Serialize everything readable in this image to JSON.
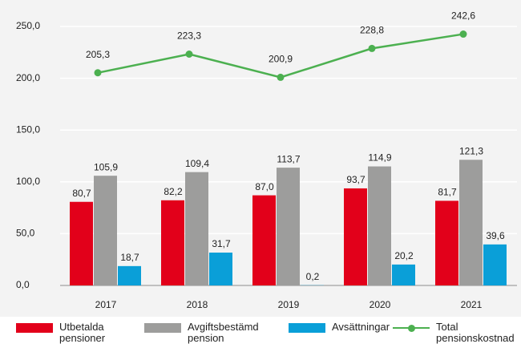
{
  "chart_data": {
    "type": "bar",
    "categories": [
      "2017",
      "2018",
      "2019",
      "2020",
      "2021"
    ],
    "series": [
      {
        "name": "Utbetalda pensioner",
        "color": "#e2001a",
        "values": [
          80.7,
          82.2,
          87.0,
          93.7,
          81.7
        ],
        "value_labels": [
          "80,7",
          "82,2",
          "87,0",
          "93,7",
          "81,7"
        ]
      },
      {
        "name": "Avgiftsbestämd pension",
        "color": "#9d9d9c",
        "values": [
          105.9,
          109.4,
          113.7,
          114.9,
          121.3
        ],
        "value_labels": [
          "105,9",
          "109,4",
          "113,7",
          "114,9",
          "121,3"
        ]
      },
      {
        "name": "Avsättningar",
        "color": "#0a9fd8",
        "values": [
          18.7,
          31.7,
          0.2,
          20.2,
          39.6
        ],
        "value_labels": [
          "18,7",
          "31,7",
          "0,2",
          "20,2",
          "39,6"
        ]
      },
      {
        "name": "Total pensionskostnad",
        "type": "line",
        "color": "#4cb050",
        "values": [
          205.3,
          223.3,
          200.9,
          228.8,
          242.6
        ],
        "value_labels": [
          "205,3",
          "223,3",
          "200,9",
          "228,8",
          "242,6"
        ]
      }
    ],
    "ylim": [
      0,
      250
    ],
    "yticks": [
      {
        "value": 0,
        "label": "0,0"
      },
      {
        "value": 50,
        "label": "50,0"
      },
      {
        "value": 100,
        "label": "100,0"
      },
      {
        "value": 150,
        "label": "150,0"
      },
      {
        "value": 200,
        "label": "200,0"
      },
      {
        "value": 250,
        "label": "250,0"
      }
    ],
    "grid": true
  }
}
